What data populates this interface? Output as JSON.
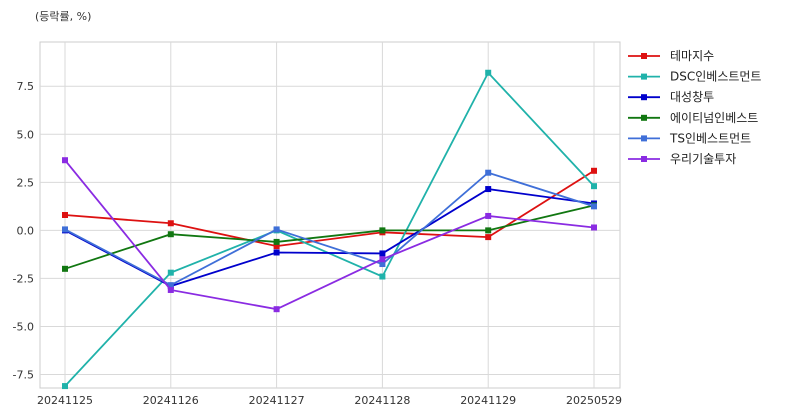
{
  "chart_data": {
    "type": "line",
    "unit_label": "(등락률, %)",
    "categories": [
      "20241125",
      "20241126",
      "20241127",
      "20241128",
      "20241129",
      "20250529"
    ],
    "yticks": [
      "7.5",
      "5.0",
      "2.5",
      "0.0",
      "-2.5",
      "-5.0",
      "-7.5"
    ],
    "ylim": [
      -8.2,
      9.8
    ],
    "grid": true,
    "legend_position": "right",
    "series": [
      {
        "name": "테마지수",
        "color": "#dd1111",
        "values": [
          0.8,
          0.37,
          -0.82,
          -0.1,
          -0.35,
          3.1
        ]
      },
      {
        "name": "DSC인베스트먼트",
        "color": "#20b2aa",
        "values": [
          -8.1,
          -2.2,
          0.0,
          -2.4,
          8.2,
          2.3
        ]
      },
      {
        "name": "대성창투",
        "color": "#0000cc",
        "values": [
          0.0,
          -2.9,
          -1.15,
          -1.2,
          2.15,
          1.4
        ]
      },
      {
        "name": "에이티넘인베스트",
        "color": "#117711",
        "values": [
          -2.0,
          -0.2,
          -0.6,
          0.0,
          0.0,
          1.3
        ]
      },
      {
        "name": "TS인베스트먼트",
        "color": "#3f6fd8",
        "values": [
          0.05,
          -2.85,
          0.05,
          -1.75,
          3.0,
          1.25
        ]
      },
      {
        "name": "우리기술투자",
        "color": "#8a2be2",
        "values": [
          3.65,
          -3.1,
          -4.1,
          -1.5,
          0.75,
          0.15
        ]
      }
    ]
  }
}
